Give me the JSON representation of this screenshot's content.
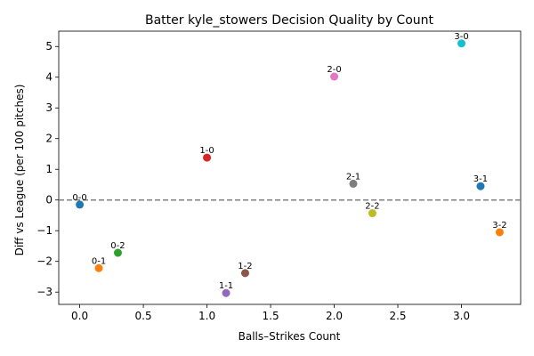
{
  "chart_data": {
    "type": "scatter",
    "title": "Batter kyle_stowers Decision Quality by Count",
    "xlabel": "Balls–Strikes Count",
    "ylabel": "Diff vs League (per 100 pitches)",
    "xlim": [
      -0.165,
      3.465
    ],
    "ylim": [
      -3.4,
      5.5
    ],
    "xticks": [
      0.0,
      0.5,
      1.0,
      1.5,
      2.0,
      2.5,
      3.0
    ],
    "xtick_labels": [
      "0.0",
      "0.5",
      "1.0",
      "1.5",
      "2.0",
      "2.5",
      "3.0"
    ],
    "yticks": [
      -3,
      -2,
      -1,
      0,
      1,
      2,
      3,
      4,
      5
    ],
    "ytick_labels": [
      "−3",
      "−2",
      "−1",
      "0",
      "1",
      "2",
      "3",
      "4",
      "5"
    ],
    "reference_line": {
      "y": 0,
      "style": "dashed",
      "color": "#808080"
    },
    "grid": false,
    "points": [
      {
        "label": "0-0",
        "x": 0.0,
        "y": -0.15,
        "color": "#1f77b4"
      },
      {
        "label": "0-1",
        "x": 0.15,
        "y": -2.22,
        "color": "#ff7f0e"
      },
      {
        "label": "0-2",
        "x": 0.3,
        "y": -1.72,
        "color": "#2ca02c"
      },
      {
        "label": "1-0",
        "x": 1.0,
        "y": 1.38,
        "color": "#d62728"
      },
      {
        "label": "1-1",
        "x": 1.15,
        "y": -3.03,
        "color": "#9467bd"
      },
      {
        "label": "1-2",
        "x": 1.3,
        "y": -2.38,
        "color": "#8c564b"
      },
      {
        "label": "2-0",
        "x": 2.0,
        "y": 4.02,
        "color": "#e377c2"
      },
      {
        "label": "2-1",
        "x": 2.15,
        "y": 0.53,
        "color": "#7f7f7f"
      },
      {
        "label": "2-2",
        "x": 2.3,
        "y": -0.43,
        "color": "#bcbd22"
      },
      {
        "label": "3-0",
        "x": 3.0,
        "y": 5.1,
        "color": "#17becf"
      },
      {
        "label": "3-1",
        "x": 3.15,
        "y": 0.45,
        "color": "#1f77b4"
      },
      {
        "label": "3-2",
        "x": 3.3,
        "y": -1.05,
        "color": "#ff7f0e"
      }
    ]
  }
}
